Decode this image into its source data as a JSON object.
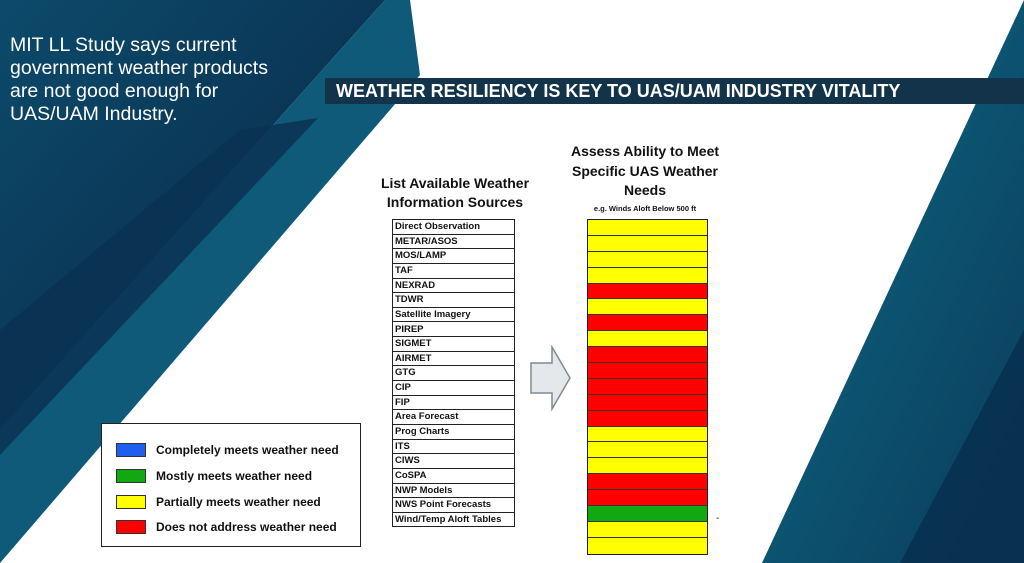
{
  "intro_lines": [
    "MIT LL Study says current",
    "government weather products",
    "are not good enough for",
    "UAS/UAM Industry."
  ],
  "banner": "WEATHER RESILIENCY IS KEY TO UAS/UAM INDUSTRY VITALITY",
  "sources_title_lines": [
    "List Available Weather",
    "Information Sources"
  ],
  "assess_title_lines": [
    "Assess Ability to Meet",
    "Specific UAS Weather",
    "Needs"
  ],
  "example_text": "e.g. Winds Aloft Below 500 ft",
  "sources": [
    {
      "name": "Direct Observation",
      "rating": "partial"
    },
    {
      "name": "METAR/ASOS",
      "rating": "partial"
    },
    {
      "name": "MOS/LAMP",
      "rating": "partial"
    },
    {
      "name": "TAF",
      "rating": "partial"
    },
    {
      "name": "NEXRAD",
      "rating": "none"
    },
    {
      "name": "TDWR",
      "rating": "partial"
    },
    {
      "name": "Satellite Imagery",
      "rating": "none"
    },
    {
      "name": "PIREP",
      "rating": "partial"
    },
    {
      "name": "SIGMET",
      "rating": "none"
    },
    {
      "name": "AIRMET",
      "rating": "none"
    },
    {
      "name": "GTG",
      "rating": "none"
    },
    {
      "name": "CIP",
      "rating": "none"
    },
    {
      "name": "FIP",
      "rating": "none"
    },
    {
      "name": "Area Forecast",
      "rating": "partial"
    },
    {
      "name": "Prog Charts",
      "rating": "partial"
    },
    {
      "name": "ITS",
      "rating": "partial"
    },
    {
      "name": "CIWS",
      "rating": "none"
    },
    {
      "name": "CoSPA",
      "rating": "none"
    },
    {
      "name": "NWP Models",
      "rating": "mostly"
    },
    {
      "name": "NWS Point Forecasts",
      "rating": "partial"
    },
    {
      "name": "Wind/Temp Aloft Tables",
      "rating": "partial"
    }
  ],
  "legend": [
    {
      "key": "complete",
      "label": "Completely meets weather need",
      "color": "#1f5ff0"
    },
    {
      "key": "mostly",
      "label": "Mostly meets weather need",
      "color": "#11a811"
    },
    {
      "key": "partial",
      "label": "Partially meets weather need",
      "color": "#ffff00"
    },
    {
      "key": "none",
      "label": "Does not address weather need",
      "color": "#ff0000"
    }
  ],
  "colors": {
    "navy": "#0b3a5c",
    "teal": "#0e5d7a",
    "banner": "#13334a",
    "arrow_fill": "#e4e8ea",
    "arrow_stroke": "#7e8a94"
  },
  "dash_text": "-"
}
